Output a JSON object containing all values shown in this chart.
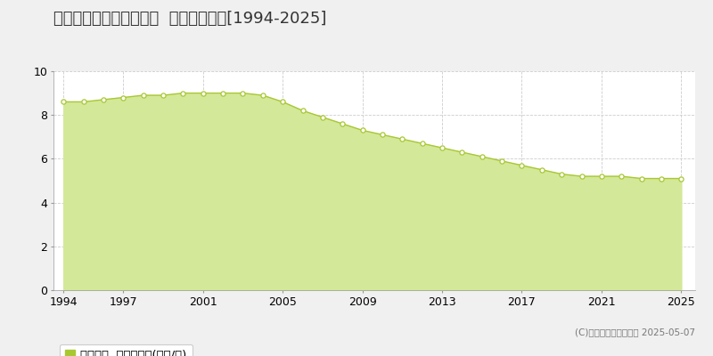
{
  "title": "熊毛郡田布施町麻郷団地  公示地価推移[1994-2025]",
  "years": [
    1994,
    1995,
    1996,
    1997,
    1998,
    1999,
    2000,
    2001,
    2002,
    2003,
    2004,
    2005,
    2006,
    2007,
    2008,
    2009,
    2010,
    2011,
    2012,
    2013,
    2014,
    2015,
    2016,
    2017,
    2018,
    2019,
    2020,
    2021,
    2022,
    2023,
    2024,
    2025
  ],
  "values": [
    8.6,
    8.6,
    8.7,
    8.8,
    8.9,
    8.9,
    9.0,
    9.0,
    9.0,
    9.0,
    8.9,
    8.6,
    8.2,
    7.9,
    7.6,
    7.3,
    7.1,
    6.9,
    6.7,
    6.5,
    6.3,
    6.1,
    5.9,
    5.7,
    5.5,
    5.3,
    5.2,
    5.2,
    5.2,
    5.1,
    5.1,
    5.1
  ],
  "line_color": "#a8c832",
  "fill_color": "#d4e899",
  "marker_face": "#ffffff",
  "marker_edge": "#a8c832",
  "bg_color": "#f0f0f0",
  "plot_bg_color": "#ffffff",
  "grid_color": "#cccccc",
  "yticks": [
    0,
    2,
    4,
    6,
    8,
    10
  ],
  "xticks": [
    1994,
    1997,
    2001,
    2005,
    2009,
    2013,
    2017,
    2021,
    2025
  ],
  "ylim": [
    0,
    10
  ],
  "xlim": [
    1993.5,
    2025.7
  ],
  "legend_label": "公示地価  平均坂単価(万円/坂)",
  "copyright": "(C)土地価格ドットコム 2025-05-07",
  "title_fontsize": 13,
  "axis_fontsize": 9,
  "legend_fontsize": 9.5
}
